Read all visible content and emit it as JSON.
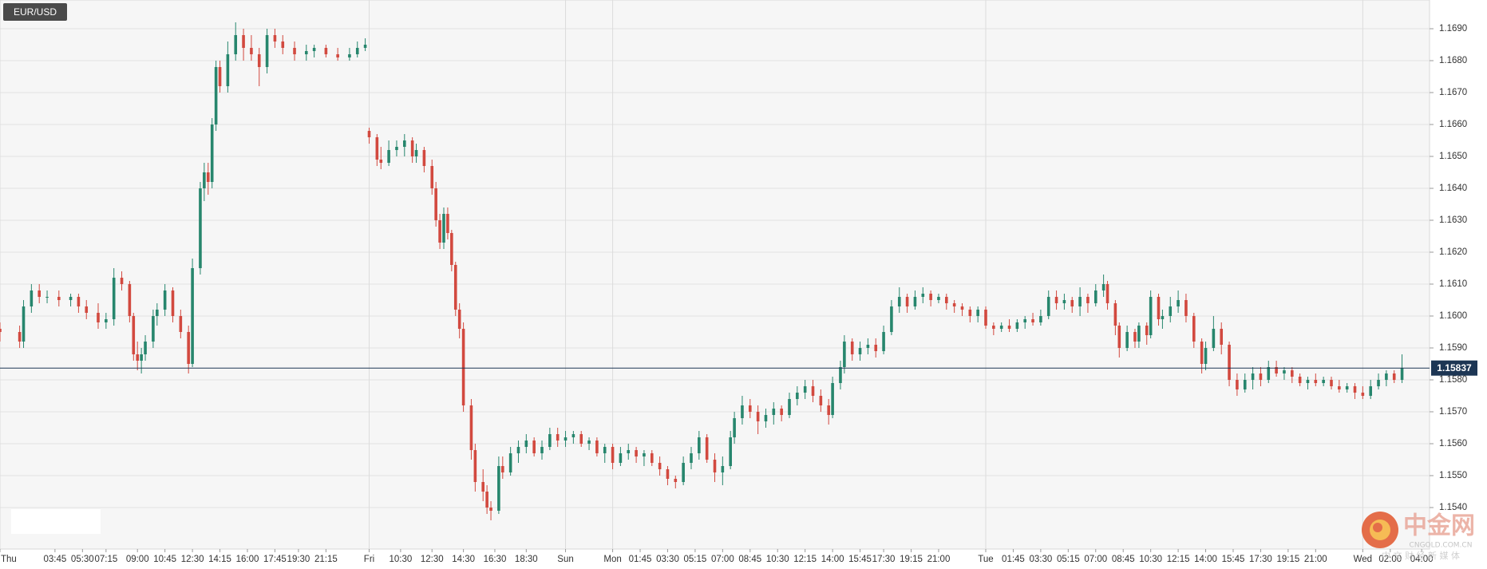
{
  "chart_data": {
    "type": "candlestick",
    "title": "EUR/USD",
    "x": [
      0,
      5,
      6,
      8,
      10,
      12,
      15,
      18,
      20,
      22,
      25,
      27,
      29,
      31,
      33,
      34,
      35,
      36,
      37,
      39,
      40,
      42,
      44,
      46,
      48,
      49,
      51,
      52,
      53,
      54,
      55,
      56,
      58,
      60,
      62,
      64,
      66,
      68,
      70,
      72,
      75,
      78,
      80,
      83,
      86,
      89,
      91,
      93,
      94,
      96,
      97,
      99,
      101,
      103,
      105,
      106,
      108,
      110,
      111,
      112,
      113,
      114,
      115,
      116,
      117,
      118,
      120,
      121,
      123,
      124,
      125,
      127,
      128,
      130,
      132,
      134,
      136,
      138,
      140,
      142,
      144,
      146,
      148,
      150,
      152,
      154,
      156,
      158,
      160,
      162,
      164,
      166,
      168,
      170,
      172,
      174,
      176,
      178,
      180,
      182,
      184,
      186,
      187,
      189,
      191,
      193,
      195,
      197,
      199,
      201,
      203,
      205,
      207,
      209,
      211,
      212,
      214,
      215,
      217,
      219,
      221,
      223,
      225,
      227,
      229,
      231,
      233,
      235,
      237,
      239,
      241,
      243,
      245,
      247,
      249,
      251,
      253,
      255,
      257,
      259,
      261,
      263,
      265,
      267,
      269,
      271,
      273,
      275,
      277,
      279,
      281,
      282,
      284,
      285,
      287,
      289,
      290,
      292,
      293,
      295,
      296,
      298,
      300,
      302,
      304,
      306,
      307,
      309,
      311,
      313,
      315,
      317,
      319,
      321,
      323,
      325,
      327,
      329,
      331,
      333,
      335,
      337,
      339,
      341,
      343,
      345,
      347,
      349,
      351,
      353,
      355,
      357
    ],
    "open": [
      1.1596,
      1.1595,
      1.1592,
      1.1603,
      1.1608,
      1.1606,
      1.1606,
      1.1605,
      1.1606,
      1.1603,
      1.1601,
      1.1598,
      1.1599,
      1.1612,
      1.161,
      1.16,
      1.1588,
      1.1586,
      1.1588,
      1.1592,
      1.16,
      1.1602,
      1.1608,
      1.16,
      1.1595,
      1.1585,
      1.1615,
      1.164,
      1.1645,
      1.1642,
      1.166,
      1.1678,
      1.1672,
      1.1682,
      1.1688,
      1.1684,
      1.1682,
      1.1678,
      1.1688,
      1.1686,
      1.1684,
      1.1682,
      1.1683,
      1.1684,
      1.1682,
      1.1681,
      1.1682,
      1.1684,
      1.1658,
      1.1656,
      1.1649,
      1.1648,
      1.1652,
      1.1653,
      1.1655,
      1.165,
      1.1652,
      1.1647,
      1.164,
      1.163,
      1.1623,
      1.1632,
      1.1626,
      1.1616,
      1.1602,
      1.1596,
      1.1572,
      1.1558,
      1.1548,
      1.1545,
      1.154,
      1.1539,
      1.1553,
      1.1551,
      1.1557,
      1.1559,
      1.1561,
      1.1557,
      1.1559,
      1.1563,
      1.1561,
      1.1562,
      1.1563,
      1.156,
      1.1561,
      1.1557,
      1.1559,
      1.1554,
      1.1557,
      1.1558,
      1.1556,
      1.1557,
      1.1554,
      1.1552,
      1.1549,
      1.1548,
      1.1554,
      1.1557,
      1.1562,
      1.1555,
      1.1551,
      1.1553,
      1.1562,
      1.1568,
      1.1572,
      1.157,
      1.1567,
      1.1569,
      1.1571,
      1.1569,
      1.1574,
      1.1576,
      1.1578,
      1.1575,
      1.1572,
      1.1569,
      1.1579,
      1.1584,
      1.1592,
      1.1588,
      1.159,
      1.1591,
      1.1589,
      1.1595,
      1.1603,
      1.1606,
      1.1603,
      1.1606,
      1.1607,
      1.1605,
      1.1606,
      1.1604,
      1.1603,
      1.1602,
      1.16,
      1.1602,
      1.1597,
      1.1596,
      1.1597,
      1.1596,
      1.1598,
      1.1599,
      1.1598,
      1.16,
      1.1606,
      1.1604,
      1.1605,
      1.1603,
      1.1606,
      1.1604,
      1.1608,
      1.161,
      1.1604,
      1.1597,
      1.159,
      1.1595,
      1.1592,
      1.1597,
      1.1594,
      1.1606,
      1.1599,
      1.16,
      1.1603,
      1.1605,
      1.16,
      1.1592,
      1.1585,
      1.159,
      1.1596,
      1.1591,
      1.158,
      1.1577,
      1.158,
      1.1582,
      1.158,
      1.1584,
      1.1582,
      1.1583,
      1.1581,
      1.1579,
      1.158,
      1.1579,
      1.158,
      1.1578,
      1.1577,
      1.1578,
      1.1576,
      1.1575,
      1.1578,
      1.158,
      1.1582,
      1.158
    ],
    "high": [
      1.1598,
      1.1597,
      1.1605,
      1.161,
      1.161,
      1.1608,
      1.1608,
      1.1607,
      1.1607,
      1.1605,
      1.1604,
      1.1601,
      1.1615,
      1.1614,
      1.1611,
      1.1601,
      1.1592,
      1.159,
      1.1594,
      1.1602,
      1.1604,
      1.161,
      1.1609,
      1.1602,
      1.1597,
      1.1618,
      1.1642,
      1.1648,
      1.1648,
      1.1662,
      1.168,
      1.168,
      1.1686,
      1.1692,
      1.169,
      1.1688,
      1.1684,
      1.169,
      1.169,
      1.1688,
      1.1686,
      1.1685,
      1.1685,
      1.1685,
      1.1684,
      1.1684,
      1.1686,
      1.1687,
      1.1659,
      1.1657,
      1.1653,
      1.1655,
      1.1655,
      1.1657,
      1.1656,
      1.1654,
      1.1653,
      1.1649,
      1.1642,
      1.1632,
      1.1634,
      1.1634,
      1.1627,
      1.1617,
      1.1604,
      1.1598,
      1.1574,
      1.156,
      1.1552,
      1.1547,
      1.1542,
      1.1556,
      1.1556,
      1.1559,
      1.1561,
      1.1563,
      1.1562,
      1.1561,
      1.1565,
      1.1565,
      1.1564,
      1.1564,
      1.1564,
      1.1562,
      1.1562,
      1.156,
      1.156,
      1.1559,
      1.156,
      1.1559,
      1.1558,
      1.1558,
      1.1556,
      1.1553,
      1.155,
      1.1556,
      1.1559,
      1.1564,
      1.1563,
      1.1557,
      1.1556,
      1.1564,
      1.157,
      1.1575,
      1.1574,
      1.1572,
      1.1571,
      1.1573,
      1.1572,
      1.1576,
      1.1578,
      1.158,
      1.158,
      1.1577,
      1.1574,
      1.1581,
      1.1586,
      1.1594,
      1.1593,
      1.1592,
      1.1593,
      1.1593,
      1.1597,
      1.1605,
      1.1609,
      1.1607,
      1.1608,
      1.1609,
      1.1608,
      1.1607,
      1.1607,
      1.1605,
      1.1604,
      1.1603,
      1.1603,
      1.1603,
      1.1598,
      1.1598,
      1.1599,
      1.1599,
      1.16,
      1.1601,
      1.1602,
      1.1608,
      1.1608,
      1.1607,
      1.1606,
      1.1609,
      1.1607,
      1.161,
      1.1613,
      1.1611,
      1.1605,
      1.1598,
      1.1597,
      1.1596,
      1.1598,
      1.1598,
      1.1608,
      1.1607,
      1.1602,
      1.1606,
      1.1608,
      1.1607,
      1.1601,
      1.1593,
      1.1592,
      1.16,
      1.1598,
      1.1592,
      1.1582,
      1.1582,
      1.1584,
      1.1584,
      1.1586,
      1.1586,
      1.1584,
      1.1584,
      1.1582,
      1.1581,
      1.1582,
      1.1581,
      1.1581,
      1.158,
      1.1579,
      1.1579,
      1.1578,
      1.158,
      1.1582,
      1.1583,
      1.1583,
      1.1588
    ],
    "low": [
      1.1592,
      1.159,
      1.159,
      1.1601,
      1.1604,
      1.1604,
      1.1603,
      1.1603,
      1.1601,
      1.1599,
      1.1596,
      1.1596,
      1.1597,
      1.1608,
      1.1598,
      1.1586,
      1.1583,
      1.1582,
      1.1586,
      1.159,
      1.1597,
      1.16,
      1.1598,
      1.1593,
      1.1582,
      1.1584,
      1.1613,
      1.1636,
      1.1638,
      1.164,
      1.1658,
      1.167,
      1.167,
      1.168,
      1.168,
      1.168,
      1.1672,
      1.1676,
      1.1684,
      1.1682,
      1.168,
      1.168,
      1.1681,
      1.1681,
      1.168,
      1.168,
      1.1681,
      1.1683,
      1.1654,
      1.1647,
      1.1646,
      1.1647,
      1.165,
      1.165,
      1.1648,
      1.1648,
      1.1645,
      1.1638,
      1.1628,
      1.1621,
      1.1621,
      1.1624,
      1.1614,
      1.16,
      1.1593,
      1.157,
      1.1555,
      1.1545,
      1.1542,
      1.1538,
      1.1536,
      1.1538,
      1.1549,
      1.155,
      1.1554,
      1.1557,
      1.1556,
      1.1555,
      1.1558,
      1.1559,
      1.1559,
      1.156,
      1.1559,
      1.1558,
      1.1556,
      1.1554,
      1.1552,
      1.1553,
      1.1555,
      1.1554,
      1.1553,
      1.1553,
      1.155,
      1.1547,
      1.1546,
      1.1547,
      1.1552,
      1.1555,
      1.1554,
      1.1548,
      1.1547,
      1.1552,
      1.156,
      1.1566,
      1.1568,
      1.1563,
      1.1565,
      1.1566,
      1.1567,
      1.1568,
      1.1572,
      1.1574,
      1.1573,
      1.157,
      1.1566,
      1.1568,
      1.1577,
      1.1582,
      1.1586,
      1.1586,
      1.1588,
      1.1587,
      1.1588,
      1.1594,
      1.1601,
      1.1601,
      1.1602,
      1.1604,
      1.1603,
      1.1604,
      1.1602,
      1.1601,
      1.16,
      1.1598,
      1.1598,
      1.1596,
      1.1594,
      1.1595,
      1.1595,
      1.1595,
      1.1596,
      1.1597,
      1.1597,
      1.1599,
      1.1602,
      1.1602,
      1.1601,
      1.16,
      1.1601,
      1.1603,
      1.1606,
      1.1602,
      1.1594,
      1.1587,
      1.1589,
      1.159,
      1.159,
      1.1591,
      1.1593,
      1.1597,
      1.1596,
      1.1598,
      1.1601,
      1.1598,
      1.159,
      1.1582,
      1.1583,
      1.1589,
      1.1588,
      1.1578,
      1.1575,
      1.1576,
      1.1577,
      1.1578,
      1.1579,
      1.1581,
      1.158,
      1.1579,
      1.1578,
      1.1577,
      1.1578,
      1.1578,
      1.1577,
      1.1576,
      1.1576,
      1.1574,
      1.1574,
      1.1574,
      1.1577,
      1.1578,
      1.1579,
      1.1579
    ],
    "close": [
      1.1595,
      1.1592,
      1.1603,
      1.1608,
      1.1606,
      1.1606,
      1.1605,
      1.1606,
      1.1603,
      1.1601,
      1.1598,
      1.1599,
      1.1612,
      1.161,
      1.16,
      1.1588,
      1.1586,
      1.1588,
      1.1592,
      1.16,
      1.1602,
      1.1608,
      1.16,
      1.1595,
      1.1585,
      1.1615,
      1.164,
      1.1645,
      1.1642,
      1.166,
      1.1678,
      1.1672,
      1.1682,
      1.1688,
      1.1684,
      1.1682,
      1.1678,
      1.1688,
      1.1686,
      1.1684,
      1.1682,
      1.1683,
      1.1684,
      1.1682,
      1.1681,
      1.1682,
      1.1684,
      1.1685,
      1.1656,
      1.1649,
      1.1648,
      1.1652,
      1.1653,
      1.1655,
      1.165,
      1.1652,
      1.1647,
      1.164,
      1.163,
      1.1623,
      1.1632,
      1.1626,
      1.1616,
      1.1602,
      1.1596,
      1.1572,
      1.1558,
      1.1548,
      1.1545,
      1.154,
      1.1539,
      1.1553,
      1.1551,
      1.1557,
      1.1559,
      1.1561,
      1.1557,
      1.1559,
      1.1563,
      1.1561,
      1.1562,
      1.1563,
      1.156,
      1.1561,
      1.1557,
      1.1559,
      1.1554,
      1.1557,
      1.1558,
      1.1556,
      1.1557,
      1.1554,
      1.1552,
      1.1549,
      1.1548,
      1.1554,
      1.1557,
      1.1562,
      1.1555,
      1.1551,
      1.1553,
      1.1562,
      1.1568,
      1.1572,
      1.157,
      1.1567,
      1.1569,
      1.1571,
      1.1569,
      1.1574,
      1.1576,
      1.1578,
      1.1575,
      1.1572,
      1.1569,
      1.1579,
      1.1584,
      1.1592,
      1.1588,
      1.159,
      1.1591,
      1.1589,
      1.1595,
      1.1603,
      1.1606,
      1.1603,
      1.1606,
      1.1607,
      1.1605,
      1.1606,
      1.1604,
      1.1603,
      1.1602,
      1.16,
      1.1602,
      1.1597,
      1.1596,
      1.1597,
      1.1596,
      1.1598,
      1.1599,
      1.1598,
      1.16,
      1.1606,
      1.1604,
      1.1605,
      1.1603,
      1.1606,
      1.1604,
      1.1608,
      1.161,
      1.1604,
      1.1597,
      1.159,
      1.1595,
      1.1592,
      1.1597,
      1.1594,
      1.1606,
      1.1599,
      1.16,
      1.1603,
      1.1605,
      1.16,
      1.1592,
      1.1585,
      1.159,
      1.1596,
      1.1591,
      1.158,
      1.1577,
      1.158,
      1.1582,
      1.158,
      1.1584,
      1.1582,
      1.1583,
      1.1581,
      1.1579,
      1.158,
      1.1579,
      1.158,
      1.1578,
      1.1577,
      1.1578,
      1.1576,
      1.1575,
      1.1578,
      1.158,
      1.1582,
      1.158,
      1.15837
    ],
    "up_color": "#27866d",
    "down_color": "#d2493f",
    "last_price": 1.15837,
    "last_price_color": "#1d3654",
    "xlim": [
      0,
      364
    ],
    "xticks": [
      {
        "value": 0,
        "label": "Thu"
      },
      {
        "value": 14,
        "label": "03:45"
      },
      {
        "value": 21,
        "label": "05:30"
      },
      {
        "value": 27,
        "label": "07:15"
      },
      {
        "value": 35,
        "label": "09:00"
      },
      {
        "value": 42,
        "label": "10:45"
      },
      {
        "value": 49,
        "label": "12:30"
      },
      {
        "value": 56,
        "label": "14:15"
      },
      {
        "value": 63,
        "label": "16:00"
      },
      {
        "value": 70,
        "label": "17:45"
      },
      {
        "value": 76,
        "label": "19:30"
      },
      {
        "value": 83,
        "label": "21:15"
      },
      {
        "value": 94,
        "label": "Fri"
      },
      {
        "value": 102,
        "label": "10:30"
      },
      {
        "value": 110,
        "label": "12:30"
      },
      {
        "value": 118,
        "label": "14:30"
      },
      {
        "value": 126,
        "label": "16:30"
      },
      {
        "value": 134,
        "label": "18:30"
      },
      {
        "value": 144,
        "label": "Sun"
      },
      {
        "value": 156,
        "label": "Mon"
      },
      {
        "value": 163,
        "label": "01:45"
      },
      {
        "value": 170,
        "label": "03:30"
      },
      {
        "value": 177,
        "label": "05:15"
      },
      {
        "value": 184,
        "label": "07:00"
      },
      {
        "value": 191,
        "label": "08:45"
      },
      {
        "value": 198,
        "label": "10:30"
      },
      {
        "value": 205,
        "label": "12:15"
      },
      {
        "value": 212,
        "label": "14:00"
      },
      {
        "value": 219,
        "label": "15:45"
      },
      {
        "value": 225,
        "label": "17:30"
      },
      {
        "value": 232,
        "label": "19:15"
      },
      {
        "value": 239,
        "label": "21:00"
      },
      {
        "value": 251,
        "label": "Tue"
      },
      {
        "value": 258,
        "label": "01:45"
      },
      {
        "value": 265,
        "label": "03:30"
      },
      {
        "value": 272,
        "label": "05:15"
      },
      {
        "value": 279,
        "label": "07:00"
      },
      {
        "value": 286,
        "label": "08:45"
      },
      {
        "value": 293,
        "label": "10:30"
      },
      {
        "value": 300,
        "label": "12:15"
      },
      {
        "value": 307,
        "label": "14:00"
      },
      {
        "value": 314,
        "label": "15:45"
      },
      {
        "value": 321,
        "label": "17:30"
      },
      {
        "value": 328,
        "label": "19:15"
      },
      {
        "value": 335,
        "label": "21:00"
      },
      {
        "value": 347,
        "label": "Wed"
      },
      {
        "value": 354,
        "label": "02:00"
      },
      {
        "value": 362,
        "label": "04:00"
      }
    ],
    "ylim": [
      1.1527,
      1.1699
    ],
    "yticks": [
      {
        "value": 1.154,
        "label": "1.1540"
      },
      {
        "value": 1.155,
        "label": "1.1550"
      },
      {
        "value": 1.156,
        "label": "1.1560"
      },
      {
        "value": 1.157,
        "label": "1.1570"
      },
      {
        "value": 1.158,
        "label": "1.1580"
      },
      {
        "value": 1.159,
        "label": "1.1590"
      },
      {
        "value": 1.16,
        "label": "1.1600"
      },
      {
        "value": 1.161,
        "label": "1.1610"
      },
      {
        "value": 1.162,
        "label": "1.1620"
      },
      {
        "value": 1.163,
        "label": "1.1630"
      },
      {
        "value": 1.164,
        "label": "1.1640"
      },
      {
        "value": 1.165,
        "label": "1.1650"
      },
      {
        "value": 1.166,
        "label": "1.1660"
      },
      {
        "value": 1.167,
        "label": "1.1670"
      },
      {
        "value": 1.168,
        "label": "1.1680"
      },
      {
        "value": 1.169,
        "label": "1.1690"
      }
    ],
    "grid": true
  },
  "watermark": {
    "logo": "中金网",
    "site": "CNGOLD.COM.CN",
    "slogan": "中 文 财 经 新 媒 体"
  }
}
